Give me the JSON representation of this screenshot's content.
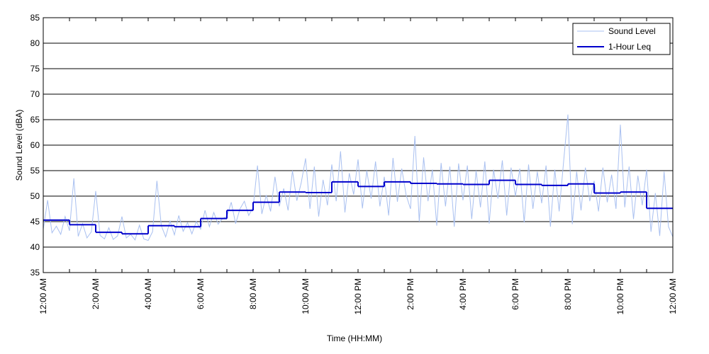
{
  "chart_data": {
    "type": "line",
    "x_label": "Time (HH:MM)",
    "y_label": "Sound Level (dBA)",
    "xlim": [
      0,
      1440
    ],
    "ylim": [
      35,
      85
    ],
    "xticks": [
      {
        "value": 0,
        "label": "12:00 AM"
      },
      {
        "value": 120,
        "label": "2:00 AM"
      },
      {
        "value": 240,
        "label": "4:00 AM"
      },
      {
        "value": 360,
        "label": "6:00 AM"
      },
      {
        "value": 480,
        "label": "8:00 AM"
      },
      {
        "value": 600,
        "label": "10:00 AM"
      },
      {
        "value": 720,
        "label": "12:00 PM"
      },
      {
        "value": 840,
        "label": "2:00 PM"
      },
      {
        "value": 960,
        "label": "4:00 PM"
      },
      {
        "value": 1080,
        "label": "6:00 PM"
      },
      {
        "value": 1200,
        "label": "8:00 PM"
      },
      {
        "value": 1320,
        "label": "10:00 PM"
      },
      {
        "value": 1440,
        "label": "12:00 AM"
      }
    ],
    "xminorticks": [
      60,
      180,
      300,
      420,
      540,
      660,
      780,
      900,
      1020,
      1140,
      1260,
      1380
    ],
    "yticks": [
      35,
      40,
      45,
      50,
      55,
      60,
      65,
      70,
      75,
      80,
      85
    ],
    "grid": "y",
    "legend": "upper right",
    "series": [
      {
        "name": "Sound Level",
        "color": "#a9c0f0",
        "style": "line",
        "x": [
          0,
          10,
          20,
          30,
          40,
          50,
          60,
          70,
          80,
          90,
          100,
          110,
          120,
          130,
          140,
          150,
          160,
          170,
          180,
          190,
          200,
          210,
          220,
          230,
          240,
          250,
          260,
          270,
          280,
          290,
          300,
          310,
          320,
          330,
          340,
          350,
          360,
          370,
          380,
          390,
          400,
          410,
          420,
          430,
          440,
          450,
          460,
          470,
          480,
          490,
          500,
          510,
          520,
          530,
          540,
          550,
          560,
          570,
          580,
          590,
          600,
          610,
          620,
          630,
          640,
          650,
          660,
          670,
          680,
          690,
          700,
          710,
          720,
          730,
          740,
          750,
          760,
          770,
          780,
          790,
          800,
          810,
          820,
          830,
          840,
          850,
          860,
          870,
          880,
          890,
          900,
          910,
          920,
          930,
          940,
          950,
          960,
          970,
          980,
          990,
          1000,
          1010,
          1020,
          1030,
          1040,
          1050,
          1060,
          1070,
          1080,
          1090,
          1100,
          1110,
          1120,
          1130,
          1140,
          1150,
          1160,
          1170,
          1180,
          1190,
          1200,
          1210,
          1220,
          1230,
          1240,
          1250,
          1260,
          1270,
          1280,
          1290,
          1300,
          1310,
          1320,
          1330,
          1340,
          1350,
          1360,
          1370,
          1380,
          1390,
          1400,
          1410,
          1420,
          1430,
          1440
        ],
        "values": [
          43.5,
          49.2,
          42.8,
          44.1,
          42.5,
          46.0,
          43.2,
          53.5,
          42.1,
          44.6,
          41.8,
          43.0,
          51.0,
          42.3,
          41.6,
          43.8,
          41.5,
          42.2,
          46.0,
          41.8,
          42.5,
          41.4,
          44.3,
          41.6,
          41.3,
          43.0,
          53.0,
          44.2,
          42.0,
          45.1,
          42.4,
          46.2,
          43.1,
          44.8,
          42.6,
          45.0,
          43.5,
          47.2,
          44.0,
          46.8,
          44.5,
          45.6,
          46.0,
          48.8,
          44.6,
          47.5,
          49.0,
          46.2,
          47.8,
          56.0,
          46.5,
          50.2,
          47.0,
          53.8,
          48.0,
          51.5,
          47.2,
          55.0,
          49.1,
          52.6,
          57.4,
          47.5,
          55.8,
          46.0,
          53.2,
          48.2,
          56.2,
          49.0,
          58.8,
          46.8,
          54.5,
          50.3,
          57.2,
          47.6,
          55.0,
          49.5,
          56.8,
          48.0,
          53.8,
          46.2,
          57.5,
          48.9,
          55.4,
          50.2,
          47.5,
          61.8,
          45.0,
          57.6,
          49.0,
          55.2,
          44.2,
          56.5,
          48.0,
          55.8,
          44.0,
          56.4,
          49.2,
          56.0,
          45.5,
          55.0,
          47.8,
          56.8,
          44.6,
          55.2,
          49.5,
          57.0,
          46.2,
          55.6,
          50.0,
          55.4,
          44.8,
          56.2,
          47.5,
          54.8,
          48.6,
          56.0,
          44.0,
          55.2,
          47.0,
          56.6,
          66.0,
          44.5,
          54.8,
          47.2,
          55.6,
          49.0,
          53.0,
          47.0,
          55.6,
          48.8,
          54.2,
          47.5,
          64.0,
          47.8,
          55.8,
          45.5,
          54.0,
          48.2,
          55.2,
          43.0,
          50.6,
          42.2,
          54.8,
          44.0,
          42.0
        ]
      },
      {
        "name": "1-Hour Leq",
        "color": "#0000cc",
        "style": "step",
        "x": [
          0,
          60,
          120,
          180,
          240,
          300,
          360,
          420,
          480,
          540,
          600,
          660,
          720,
          780,
          840,
          900,
          960,
          1020,
          1080,
          1140,
          1200,
          1260,
          1320,
          1380
        ],
        "values": [
          45.3,
          44.4,
          42.9,
          42.6,
          44.2,
          44.0,
          45.6,
          47.2,
          48.8,
          50.8,
          50.7,
          52.8,
          51.9,
          52.8,
          52.5,
          52.4,
          52.3,
          53.1,
          52.3,
          52.1,
          52.4,
          50.6,
          50.8,
          47.6
        ]
      }
    ]
  }
}
